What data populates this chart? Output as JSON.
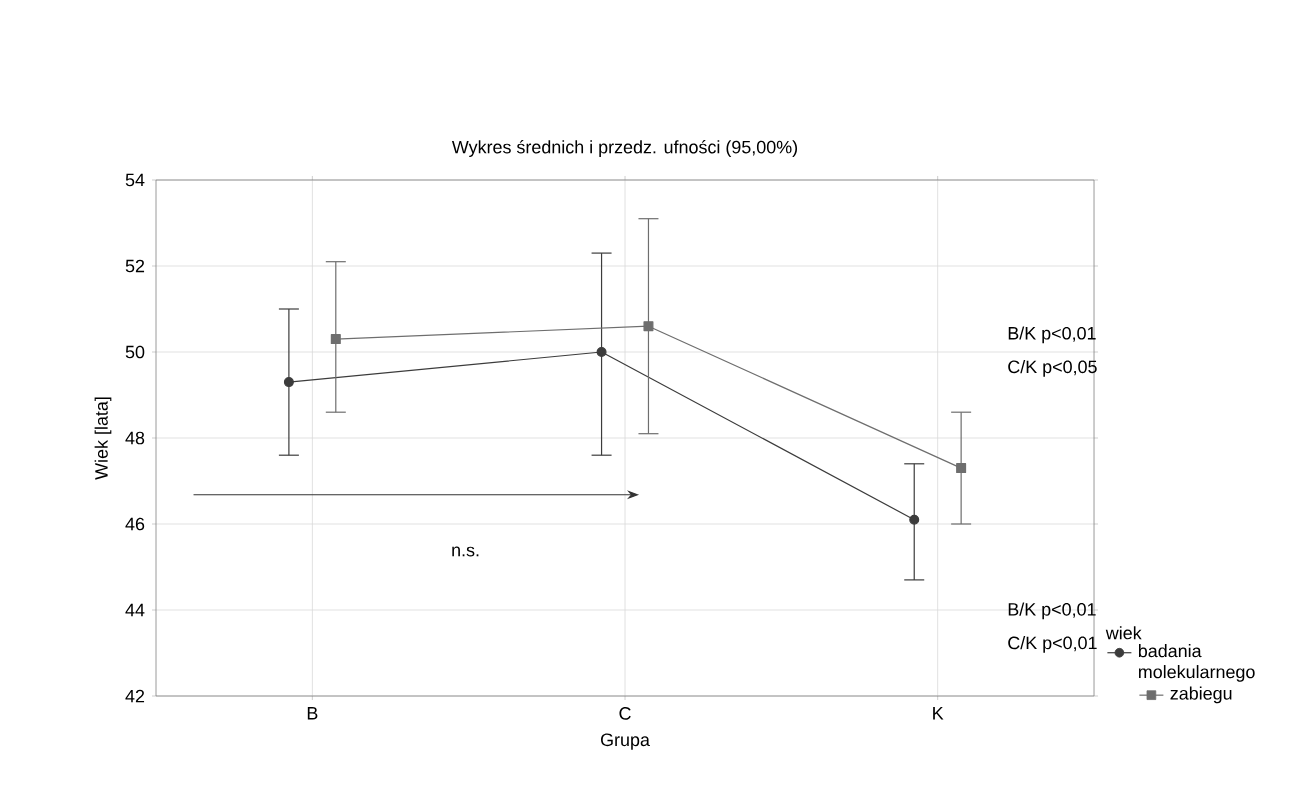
{
  "chart_data": {
    "type": "line",
    "title": "Wykres średnich i przedz. ufności (95,00%)",
    "xlabel": "Grupa",
    "ylabel": "Wiek [lata]",
    "legend_title": "wiek",
    "categories": [
      "B",
      "C",
      "K"
    ],
    "series": [
      {
        "name": "badania molekularnego",
        "color": "#3c3c3c",
        "marker": "circle",
        "values": [
          49.3,
          50.0,
          46.1
        ],
        "errors": [
          [
            47.6,
            51.0
          ],
          [
            47.6,
            52.3
          ],
          [
            44.7,
            47.4
          ]
        ]
      },
      {
        "name": "zabiegu",
        "color": "#6e6e6e",
        "marker": "square",
        "values": [
          50.3,
          50.6,
          47.3
        ],
        "errors": [
          [
            48.6,
            52.1
          ],
          [
            48.1,
            53.1
          ],
          [
            46.0,
            48.6
          ]
        ]
      }
    ],
    "ylim": [
      42,
      54
    ],
    "yticks": [
      42,
      44,
      46,
      48,
      50,
      52,
      54
    ],
    "grid": true,
    "legend": "right",
    "line_style": "solid",
    "annotations": [
      "n.s.",
      "B/K p<0,01",
      "C/K p<0,05",
      "B/K p<0,01",
      "C/K p<0,01"
    ]
  }
}
